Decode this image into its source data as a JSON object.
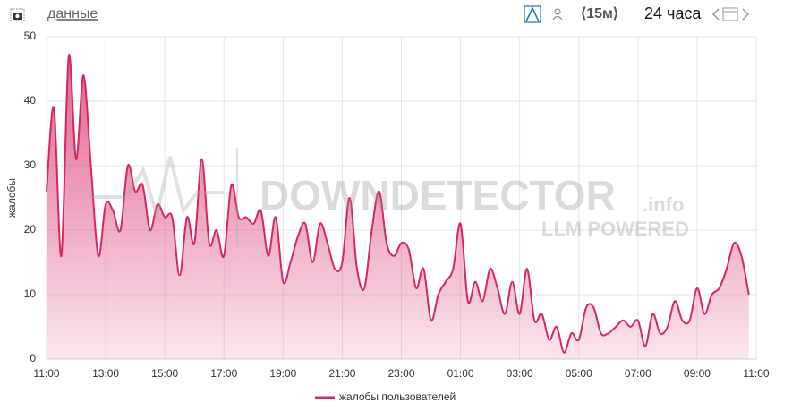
{
  "header": {
    "link": "данные",
    "interval": "⟨15м⟩",
    "range": "24 часа"
  },
  "watermark": {
    "brand": "DOWNDETECTOR",
    "suffix": ".info",
    "tagline": "LLM POWERED"
  },
  "chart_data": {
    "type": "area",
    "y_label": "жалобы",
    "categories": [
      "11:00",
      null,
      null,
      null,
      null,
      null,
      null,
      null,
      "13:00",
      null,
      null,
      null,
      null,
      null,
      null,
      null,
      "15:00",
      null,
      null,
      null,
      null,
      null,
      null,
      null,
      "17:00",
      null,
      null,
      null,
      null,
      null,
      null,
      null,
      "19:00",
      null,
      null,
      null,
      null,
      null,
      null,
      null,
      "21:00",
      null,
      null,
      null,
      null,
      null,
      null,
      null,
      "23:00",
      null,
      null,
      null,
      null,
      null,
      null,
      null,
      "01:00",
      null,
      null,
      null,
      null,
      null,
      null,
      null,
      "03:00",
      null,
      null,
      null,
      null,
      null,
      null,
      null,
      "05:00",
      null,
      null,
      null,
      null,
      null,
      null,
      null,
      "07:00",
      null,
      null,
      null,
      null,
      null,
      null,
      null,
      "09:00",
      null,
      null,
      null,
      null,
      null,
      null,
      null,
      "11:00"
    ],
    "series": [
      {
        "name": "жалобы пользователей",
        "color": "#d6285f",
        "values": [
          26,
          39,
          16,
          47,
          31,
          44,
          30,
          16,
          24,
          23,
          20,
          30,
          26,
          27,
          20,
          24,
          22,
          22,
          13,
          22,
          18,
          31,
          18,
          20,
          16,
          27,
          22,
          22,
          21,
          23,
          16,
          22,
          12,
          15,
          19,
          21,
          15,
          21,
          18,
          14,
          15,
          25,
          14,
          11,
          20,
          26,
          18,
          16,
          18,
          17,
          11,
          14,
          6,
          10,
          12,
          14,
          21,
          9,
          12,
          9,
          14,
          11,
          7,
          12,
          7,
          14,
          6,
          7,
          3,
          5,
          1,
          4,
          3,
          8,
          8,
          4,
          4,
          5,
          6,
          5,
          6,
          2,
          7,
          4,
          5,
          9,
          6,
          6,
          11,
          7,
          10,
          11,
          14,
          18,
          16,
          10,
          null
        ]
      }
    ],
    "ylim": [
      0,
      50
    ],
    "yticks": [
      0,
      10,
      20,
      30,
      40,
      50
    ],
    "grid": true,
    "legend": "bottom"
  }
}
